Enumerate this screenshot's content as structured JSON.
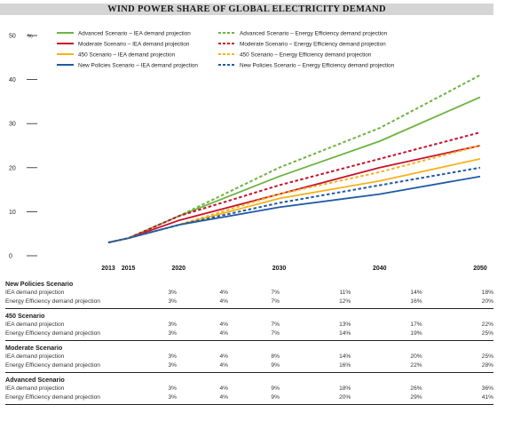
{
  "chart_data": {
    "type": "line",
    "title": "WIND POWER SHARE OF GLOBAL ELECTRICITY DEMAND",
    "ylabel": "%",
    "ylim": [
      0,
      50
    ],
    "yticks": [
      0,
      10,
      20,
      30,
      40,
      50
    ],
    "x": [
      "2013",
      "2015",
      "2020",
      "2030",
      "2040",
      "2050"
    ],
    "legend_position": "top",
    "series": [
      {
        "name": "Advanced Scenario – IEA demand projection",
        "color": "#6db33f",
        "style": "solid",
        "values": [
          3,
          4,
          9,
          18,
          26,
          36
        ]
      },
      {
        "name": "Advanced Scenario – Energy Efficiency demand projection",
        "color": "#6db33f",
        "style": "dashed",
        "values": [
          3,
          4,
          9,
          20,
          29,
          41
        ]
      },
      {
        "name": "Moderate Scenario – IEA demand projection",
        "color": "#c8102e",
        "style": "solid",
        "values": [
          3,
          4,
          8,
          14,
          20,
          25
        ]
      },
      {
        "name": "Moderate Scenario – Energy Efficiency demand projection",
        "color": "#c8102e",
        "style": "dashed",
        "values": [
          3,
          4,
          9,
          16,
          22,
          28
        ]
      },
      {
        "name": "450 Scenario – IEA demand projection",
        "color": "#f5b21a",
        "style": "solid",
        "values": [
          3,
          4,
          7,
          13,
          17,
          22
        ]
      },
      {
        "name": "450 Scenario – Energy Efficiency demand projection",
        "color": "#f5b21a",
        "style": "dashed",
        "values": [
          3,
          4,
          7,
          14,
          19,
          25
        ]
      },
      {
        "name": "New Policies Scenario – IEA demand projection",
        "color": "#1f5aa6",
        "style": "solid",
        "values": [
          3,
          4,
          7,
          11,
          14,
          18
        ]
      },
      {
        "name": "New Policies Scenario – Energy Efficiency demand projection",
        "color": "#1f5aa6",
        "style": "dashed",
        "values": [
          3,
          4,
          7,
          12,
          16,
          20
        ]
      }
    ]
  },
  "table": {
    "years": [
      "2013",
      "2015",
      "2020",
      "2030",
      "2040",
      "2050"
    ],
    "scenarios": [
      {
        "name": "New Policies Scenario",
        "rows": [
          {
            "label": "IEA demand projection",
            "values": [
              "3%",
              "4%",
              "7%",
              "11%",
              "14%",
              "18%"
            ]
          },
          {
            "label": "Energy Efficiency demand projection",
            "values": [
              "3%",
              "4%",
              "7%",
              "12%",
              "16%",
              "20%"
            ]
          }
        ]
      },
      {
        "name": "450 Scenario",
        "rows": [
          {
            "label": "IEA demand projection",
            "values": [
              "3%",
              "4%",
              "7%",
              "13%",
              "17%",
              "22%"
            ]
          },
          {
            "label": "Energy Efficiency demand projection",
            "values": [
              "3%",
              "4%",
              "7%",
              "14%",
              "19%",
              "25%"
            ]
          }
        ]
      },
      {
        "name": "Moderate Scenario",
        "rows": [
          {
            "label": "IEA demand projection",
            "values": [
              "3%",
              "4%",
              "8%",
              "14%",
              "20%",
              "25%"
            ]
          },
          {
            "label": "Energy Efficiency demand projection",
            "values": [
              "3%",
              "4%",
              "9%",
              "16%",
              "22%",
              "28%"
            ]
          }
        ]
      },
      {
        "name": "Advanced Scenario",
        "rows": [
          {
            "label": "IEA demand projection",
            "values": [
              "3%",
              "4%",
              "9%",
              "18%",
              "26%",
              "36%"
            ]
          },
          {
            "label": "Energy Efficiency demand projection",
            "values": [
              "3%",
              "4%",
              "9%",
              "20%",
              "29%",
              "41%"
            ]
          }
        ]
      }
    ]
  }
}
